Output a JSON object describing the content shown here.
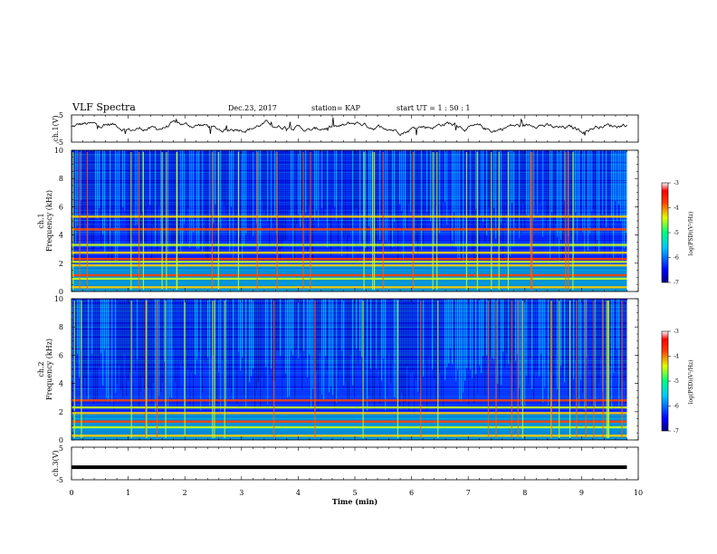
{
  "header": {
    "title": "VLF Spectra",
    "date": "Dec.23, 2017",
    "station": "station= KAP",
    "start": "start  UT =   1 : 50 : 1"
  },
  "chart_data": [
    {
      "type": "line",
      "panel": "ch1-waveform",
      "ylabel": "ch.1(V)",
      "ylim": [
        -5,
        5
      ],
      "yticks": [
        "5",
        "-5"
      ],
      "xlim": [
        0,
        10
      ],
      "series": [
        {
          "values_description_free": true,
          "mean": 0.5,
          "range": [
            -1.6,
            3.2
          ]
        }
      ]
    },
    {
      "type": "heatmap",
      "panel": "ch1-spectrogram",
      "ylabel": "ch.1 Frequency (kHz)",
      "ylim": [
        0,
        10
      ],
      "yticks": [
        "0",
        "2",
        "4",
        "6",
        "8",
        "10"
      ],
      "xlim": [
        0,
        10
      ],
      "colorbar": {
        "label": "log(PSD)(V²/Hz)",
        "ticks": [
          "-3",
          "-4",
          "-5",
          "-6",
          "-7"
        ],
        "range": [
          -7,
          -3
        ]
      },
      "bands_khz": [
        0.3,
        0.9,
        1.15,
        1.85,
        2.1,
        2.3,
        2.75,
        3.3,
        4.4,
        5.3
      ]
    },
    {
      "type": "heatmap",
      "panel": "ch2-spectrogram",
      "ylabel": "ch.2 Frequency (kHz)",
      "ylim": [
        0,
        10
      ],
      "yticks": [
        "0",
        "2",
        "4",
        "6",
        "8",
        "10"
      ],
      "xlim": [
        0,
        10
      ],
      "colorbar": {
        "label": "log(PSD)(V²/Hz)",
        "ticks": [
          "-3",
          "-4",
          "-5",
          "-6",
          "-7"
        ],
        "range": [
          -7,
          -3
        ]
      },
      "bands_khz": [
        0.3,
        0.9,
        1.3,
        1.9,
        2.3,
        2.8
      ]
    },
    {
      "type": "line",
      "panel": "ch3-waveform",
      "ylabel": "ch.3(V)",
      "ylim": [
        -5,
        5
      ],
      "yticks": [
        "5",
        "-5"
      ],
      "xlim": [
        0,
        10
      ],
      "series": [
        {
          "constant": -1.5
        }
      ]
    }
  ],
  "xaxis": {
    "label": "Time (min)",
    "ticks": [
      "0",
      "1",
      "2",
      "3",
      "4",
      "5",
      "6",
      "7",
      "8",
      "9",
      "10"
    ]
  },
  "labels": {
    "ch1_v": "ch.1(V)",
    "ch1_freq_a": "ch.1",
    "ch1_freq_b": "Frequency (kHz)",
    "ch2_freq_a": "ch.2",
    "ch2_freq_b": "Frequency (kHz)",
    "ch3_v": "ch.3(V)",
    "colorbar": "log(PSD)(V²/Hz)",
    "wave_ticks": [
      "5",
      "-5"
    ],
    "freq_ticks": [
      "0",
      "2",
      "4",
      "6",
      "8",
      "10"
    ],
    "cb_ticks": [
      "-3",
      "-4",
      "-5",
      "-6",
      "-7"
    ]
  }
}
